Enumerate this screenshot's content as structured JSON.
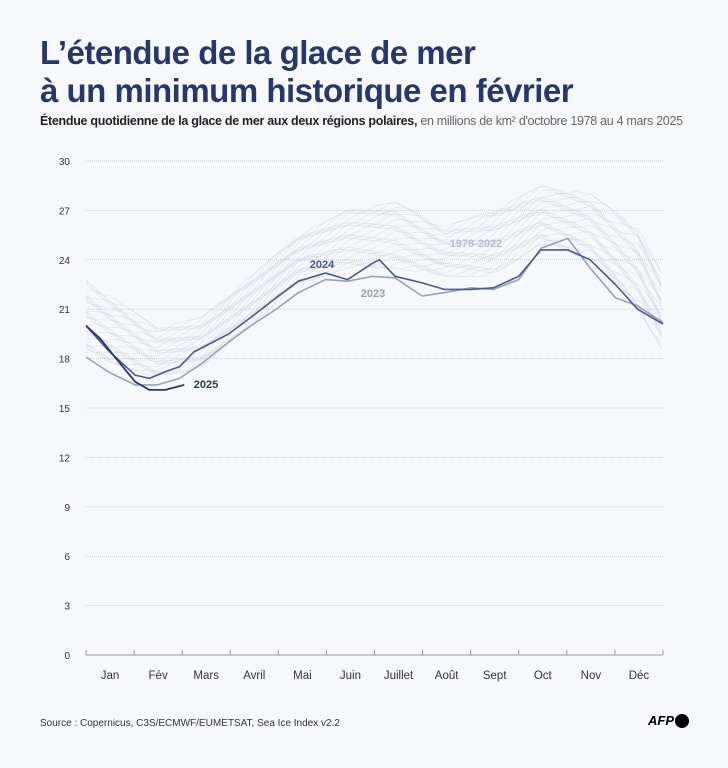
{
  "title_line1": "L’étendue de la glace de mer",
  "title_line2": "à un minimum historique en février",
  "subtitle_bold": "Étendue quotidienne de la glace de mer aux deux régions polaires,",
  "subtitle_normal": " en millions de km² d'octobre 1978 au 4 mars 2025",
  "source": "Source : Copernicus, C3S/ECMWF/EUMETSAT, Sea Ice Index v2.2",
  "logo": "AFP",
  "chart_data": {
    "type": "line",
    "ylim": [
      0,
      30
    ],
    "yticks": [
      0,
      3,
      6,
      9,
      12,
      15,
      18,
      21,
      24,
      27,
      30
    ],
    "grid": true,
    "xlabel": "",
    "ylabel": "",
    "x_unit": "day of year",
    "month_labels": [
      "Jan",
      "Fév",
      "Mars",
      "Avril",
      "Mai",
      "Juin",
      "Juillet",
      "Août",
      "Sept",
      "Oct",
      "Nov",
      "Déc"
    ],
    "series": [
      {
        "name": "1978-2022",
        "color": "#c9cddd",
        "type": "range",
        "x": [
          1,
          46,
          74,
          105,
          135,
          166,
          196,
          227,
          258,
          288,
          319,
          349,
          365
        ],
        "lower": [
          18.3,
          16.8,
          17.5,
          20.0,
          22.5,
          23.5,
          23.5,
          23.0,
          23.0,
          25.0,
          24.0,
          21.0,
          18.5
        ],
        "upper": [
          22.8,
          19.9,
          20.5,
          23.0,
          25.5,
          27.0,
          27.5,
          26.0,
          27.0,
          28.5,
          28.0,
          26.0,
          23.0
        ]
      },
      {
        "name": "2023",
        "color": "#9aa0b8",
        "x": [
          1,
          15,
          32,
          46,
          60,
          74,
          91,
          105,
          121,
          135,
          152,
          166,
          182,
          196,
          213,
          227,
          244,
          258,
          274,
          288,
          305,
          319,
          335,
          349,
          365
        ],
        "y": [
          18.1,
          17.2,
          16.4,
          16.4,
          16.8,
          17.7,
          19.0,
          20.0,
          21.0,
          22.0,
          22.8,
          22.7,
          23.0,
          22.9,
          21.8,
          22.0,
          22.3,
          22.2,
          22.8,
          24.7,
          25.3,
          23.5,
          21.7,
          21.2,
          20.2
        ]
      },
      {
        "name": "2024",
        "color": "#4b5a8c",
        "x": [
          1,
          15,
          32,
          41,
          51,
          60,
          69,
          91,
          105,
          121,
          135,
          152,
          166,
          182,
          186,
          196,
          213,
          227,
          244,
          258,
          274,
          288,
          305,
          319,
          335,
          349,
          365
        ],
        "y": [
          20.0,
          18.5,
          17.0,
          16.8,
          17.2,
          17.5,
          18.4,
          19.5,
          20.5,
          21.7,
          22.7,
          23.2,
          22.8,
          23.8,
          24.0,
          23.0,
          22.6,
          22.2,
          22.2,
          22.3,
          23.0,
          24.6,
          24.6,
          24.0,
          22.5,
          21.0,
          20.1
        ]
      },
      {
        "name": "2025",
        "color": "#26386b",
        "x": [
          1,
          10,
          20,
          32,
          41,
          51,
          63
        ],
        "y": [
          20.0,
          19.2,
          18.0,
          16.6,
          16.1,
          16.1,
          16.4
        ]
      }
    ]
  }
}
